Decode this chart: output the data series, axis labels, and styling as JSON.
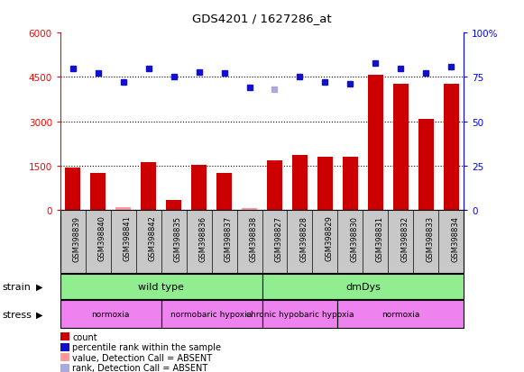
{
  "title": "GDS4201 / 1627286_at",
  "samples": [
    "GSM398839",
    "GSM398840",
    "GSM398841",
    "GSM398842",
    "GSM398835",
    "GSM398836",
    "GSM398837",
    "GSM398838",
    "GSM398827",
    "GSM398828",
    "GSM398829",
    "GSM398830",
    "GSM398831",
    "GSM398832",
    "GSM398833",
    "GSM398834"
  ],
  "count_values": [
    1420,
    1260,
    75,
    1610,
    340,
    1530,
    1260,
    55,
    1680,
    1870,
    1790,
    1790,
    4580,
    4280,
    3080,
    4280
  ],
  "count_absent": [
    false,
    false,
    true,
    false,
    false,
    false,
    false,
    true,
    false,
    false,
    false,
    false,
    false,
    false,
    false,
    false
  ],
  "percentile_values": [
    80,
    77,
    72,
    80,
    75,
    78,
    77,
    69,
    68,
    75,
    72,
    71,
    83,
    80,
    77,
    81
  ],
  "percentile_absent": [
    false,
    false,
    false,
    false,
    false,
    false,
    false,
    false,
    true,
    false,
    false,
    false,
    false,
    false,
    false,
    false
  ],
  "ylim_left": [
    0,
    6000
  ],
  "ylim_right": [
    0,
    100
  ],
  "yticks_left": [
    0,
    1500,
    3000,
    4500,
    6000
  ],
  "ytick_labels_left": [
    "0",
    "1500",
    "3000",
    "4500",
    "6000"
  ],
  "yticks_right": [
    0,
    25,
    50,
    75,
    100
  ],
  "ytick_labels_right": [
    "0",
    "25",
    "50",
    "75",
    "100%"
  ],
  "grid_values": [
    1500,
    3000,
    4500
  ],
  "bar_color": "#CC0000",
  "bar_absent_color": "#FF9999",
  "dot_color": "#1111CC",
  "dot_absent_color": "#AAAADD",
  "strain_groups": [
    {
      "label": "wild type",
      "start": 0,
      "end": 8,
      "color": "#90EE90"
    },
    {
      "label": "dmDys",
      "start": 8,
      "end": 16,
      "color": "#90EE90"
    }
  ],
  "stress_groups": [
    {
      "label": "normoxia",
      "start": 0,
      "end": 4,
      "color": "#EE82EE"
    },
    {
      "label": "normobaric hypoxia",
      "start": 4,
      "end": 8,
      "color": "#EE82EE"
    },
    {
      "label": "chronic hypobaric hypoxia",
      "start": 8,
      "end": 11,
      "color": "#EE82EE"
    },
    {
      "label": "normoxia",
      "start": 11,
      "end": 16,
      "color": "#EE82EE"
    }
  ],
  "legend_items": [
    {
      "color": "#CC0000",
      "label": "count"
    },
    {
      "color": "#1111CC",
      "label": "percentile rank within the sample"
    },
    {
      "color": "#FF9999",
      "label": "value, Detection Call = ABSENT"
    },
    {
      "color": "#AAAADD",
      "label": "rank, Detection Call = ABSENT"
    }
  ],
  "tick_bg_color": "#C8C8C8",
  "fig_width": 5.81,
  "fig_height": 4.14,
  "dpi": 100
}
